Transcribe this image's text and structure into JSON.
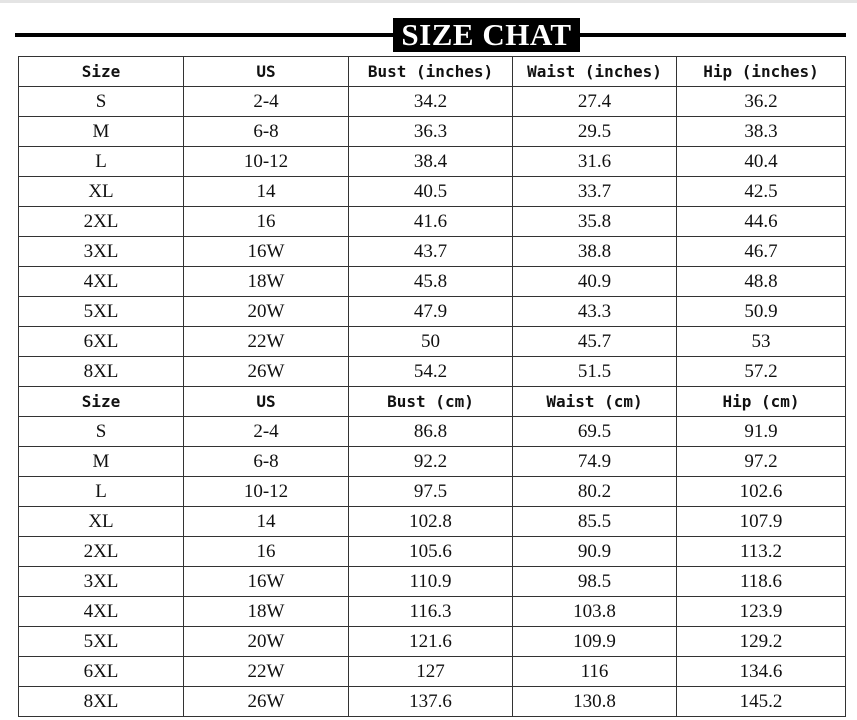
{
  "header": {
    "title": "SIZE CHAT"
  },
  "table": {
    "sections": [
      {
        "header": [
          "Size",
          "US",
          "Bust (inches)",
          "Waist (inches)",
          "Hip (inches)"
        ],
        "rows": [
          [
            "S",
            "2-4",
            "34.2",
            "27.4",
            "36.2"
          ],
          [
            "M",
            "6-8",
            "36.3",
            "29.5",
            "38.3"
          ],
          [
            "L",
            "10-12",
            "38.4",
            "31.6",
            "40.4"
          ],
          [
            "XL",
            "14",
            "40.5",
            "33.7",
            "42.5"
          ],
          [
            "2XL",
            "16",
            "41.6",
            "35.8",
            "44.6"
          ],
          [
            "3XL",
            "16W",
            "43.7",
            "38.8",
            "46.7"
          ],
          [
            "4XL",
            "18W",
            "45.8",
            "40.9",
            "48.8"
          ],
          [
            "5XL",
            "20W",
            "47.9",
            "43.3",
            "50.9"
          ],
          [
            "6XL",
            "22W",
            "50",
            "45.7",
            "53"
          ],
          [
            "8XL",
            "26W",
            "54.2",
            "51.5",
            "57.2"
          ]
        ]
      },
      {
        "header": [
          "Size",
          "US",
          "Bust (cm)",
          "Waist (cm)",
          "Hip (cm)"
        ],
        "rows": [
          [
            "S",
            "2-4",
            "86.8",
            "69.5",
            "91.9"
          ],
          [
            "M",
            "6-8",
            "92.2",
            "74.9",
            "97.2"
          ],
          [
            "L",
            "10-12",
            "97.5",
            "80.2",
            "102.6"
          ],
          [
            "XL",
            "14",
            "102.8",
            "85.5",
            "107.9"
          ],
          [
            "2XL",
            "16",
            "105.6",
            "90.9",
            "113.2"
          ],
          [
            "3XL",
            "16W",
            "110.9",
            "98.5",
            "118.6"
          ],
          [
            "4XL",
            "18W",
            "116.3",
            "103.8",
            "123.9"
          ],
          [
            "5XL",
            "20W",
            "121.6",
            "109.9",
            "129.2"
          ],
          [
            "6XL",
            "22W",
            "127",
            "116",
            "134.6"
          ],
          [
            "8XL",
            "26W",
            "137.6",
            "130.8",
            "145.2"
          ]
        ]
      }
    ]
  }
}
